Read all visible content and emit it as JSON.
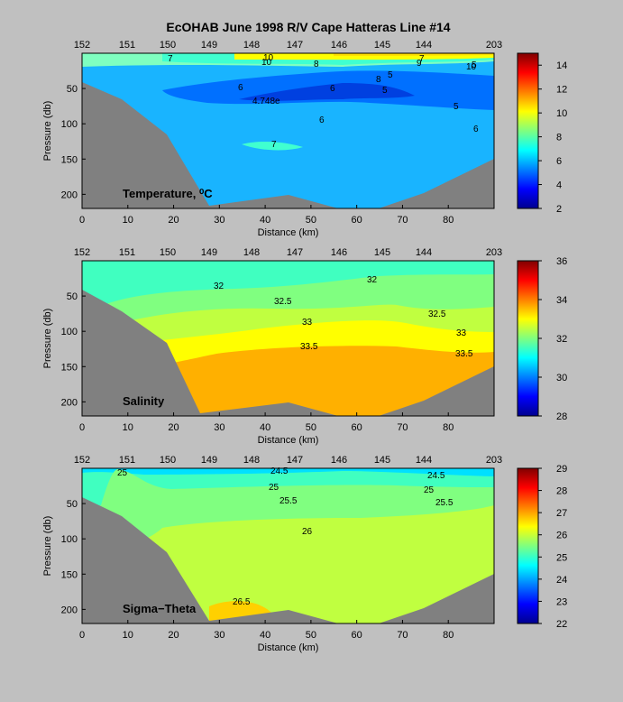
{
  "title": "EcOHAB   June 1998   R/V Cape Hatteras   Line #14",
  "chart_data": [
    {
      "type": "contour",
      "label": "Temperature, ⁰C",
      "xlabel": "Distance (km)",
      "ylabel": "Pressure (db)",
      "xlim": [
        0,
        90
      ],
      "ylim": [
        220,
        0
      ],
      "xticks": [
        "0",
        "10",
        "20",
        "30",
        "40",
        "50",
        "60",
        "70",
        "80"
      ],
      "yticks": [
        "50",
        "100",
        "150",
        "200"
      ],
      "station_ticks": [
        "152",
        "151",
        "150",
        "149",
        "148",
        "147",
        "146",
        "145",
        "144",
        "203"
      ],
      "colorbar": {
        "min": 2,
        "max": 15,
        "ticks": [
          "2",
          "4",
          "6",
          "8",
          "10",
          "12",
          "14"
        ]
      },
      "contour_labels": [
        "7",
        "10",
        "10",
        "8",
        "7",
        "9",
        "6",
        "8",
        "5",
        "6",
        "5",
        "4.748e",
        "5",
        "6",
        "6",
        "7",
        "10",
        "5"
      ]
    },
    {
      "type": "contour",
      "label": "Salinity",
      "xlabel": "Distance (km)",
      "ylabel": "Pressure (db)",
      "xlim": [
        0,
        90
      ],
      "ylim": [
        220,
        0
      ],
      "xticks": [
        "0",
        "10",
        "20",
        "30",
        "40",
        "50",
        "60",
        "70",
        "80"
      ],
      "yticks": [
        "50",
        "100",
        "150",
        "200"
      ],
      "station_ticks": [
        "152",
        "151",
        "150",
        "149",
        "148",
        "147",
        "146",
        "145",
        "144",
        "203"
      ],
      "colorbar": {
        "min": 28,
        "max": 36,
        "ticks": [
          "28",
          "30",
          "32",
          "34",
          "36"
        ]
      },
      "contour_labels": [
        "32",
        "32",
        "32.5",
        "32.5",
        "33",
        "33",
        "33.5",
        "33.5"
      ]
    },
    {
      "type": "contour",
      "label": "Sigma−Theta",
      "xlabel": "Distance (km)",
      "ylabel": "Pressure (db)",
      "xlim": [
        0,
        90
      ],
      "ylim": [
        220,
        0
      ],
      "xticks": [
        "0",
        "10",
        "20",
        "30",
        "40",
        "50",
        "60",
        "70",
        "80"
      ],
      "yticks": [
        "50",
        "100",
        "150",
        "200"
      ],
      "station_ticks": [
        "152",
        "151",
        "150",
        "149",
        "148",
        "147",
        "146",
        "145",
        "144",
        "203"
      ],
      "colorbar": {
        "min": 22,
        "max": 29,
        "ticks": [
          "22",
          "23",
          "24",
          "25",
          "26",
          "27",
          "28",
          "29"
        ]
      },
      "contour_labels": [
        "25",
        "24.5",
        "24.5",
        "25",
        "25",
        "25.5",
        "25.5",
        "26",
        "26.5"
      ]
    }
  ]
}
